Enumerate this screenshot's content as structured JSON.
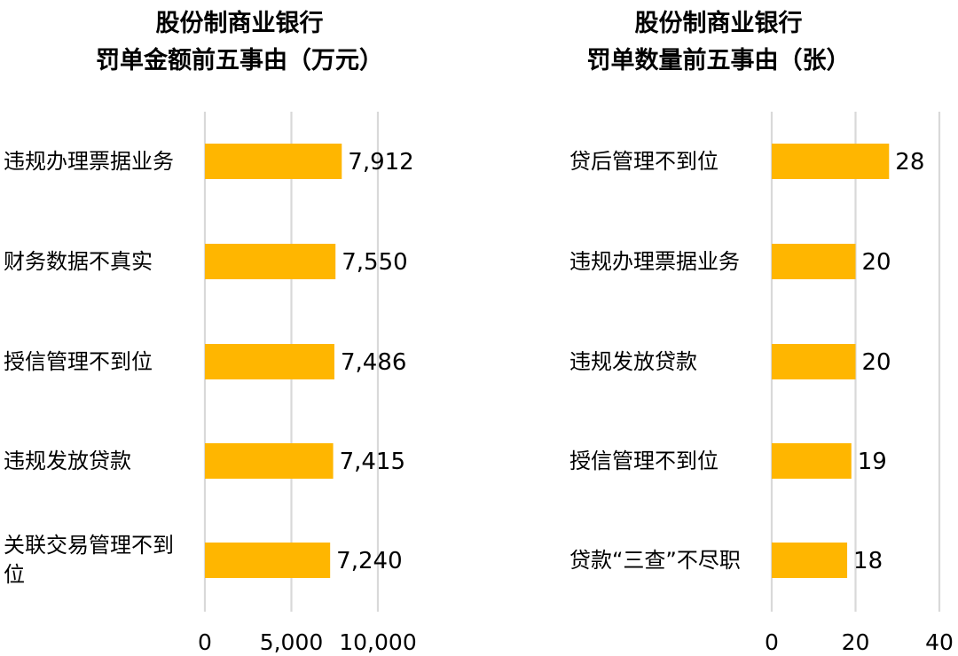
{
  "chart_data": [
    {
      "type": "bar",
      "orientation": "horizontal",
      "title_lines": [
        "股份制商业银行",
        "罚单金额前五事由（万元）"
      ],
      "categories": [
        "违规办理票据业务",
        "财务数据不真实",
        "授信管理不到位",
        "违规发放贷款",
        "关联交易管理不到位"
      ],
      "values": [
        7912,
        7550,
        7486,
        7415,
        7240
      ],
      "value_labels": [
        "7,912",
        "7,550",
        "7,486",
        "7,415",
        "7,240"
      ],
      "xlim": [
        0,
        10000
      ],
      "x_ticks": [
        0,
        5000,
        10000
      ],
      "x_tick_labels": [
        "0",
        "5,000",
        "10,000"
      ],
      "grid": true,
      "bar_color": "#FFB600",
      "grid_color": "#D9D9D9"
    },
    {
      "type": "bar",
      "orientation": "horizontal",
      "title_lines": [
        "股份制商业银行",
        "罚单数量前五事由（张）"
      ],
      "categories": [
        "贷后管理不到位",
        "违规办理票据业务",
        "违规发放贷款",
        "授信管理不到位",
        "贷款“三查”不尽职"
      ],
      "values": [
        28,
        20,
        20,
        19,
        18
      ],
      "value_labels": [
        "28",
        "20",
        "20",
        "19",
        "18"
      ],
      "xlim": [
        0,
        40
      ],
      "x_ticks": [
        0,
        20,
        40
      ],
      "x_tick_labels": [
        "0",
        "20",
        "40"
      ],
      "grid": true,
      "bar_color": "#FFB600",
      "grid_color": "#D9D9D9"
    }
  ]
}
